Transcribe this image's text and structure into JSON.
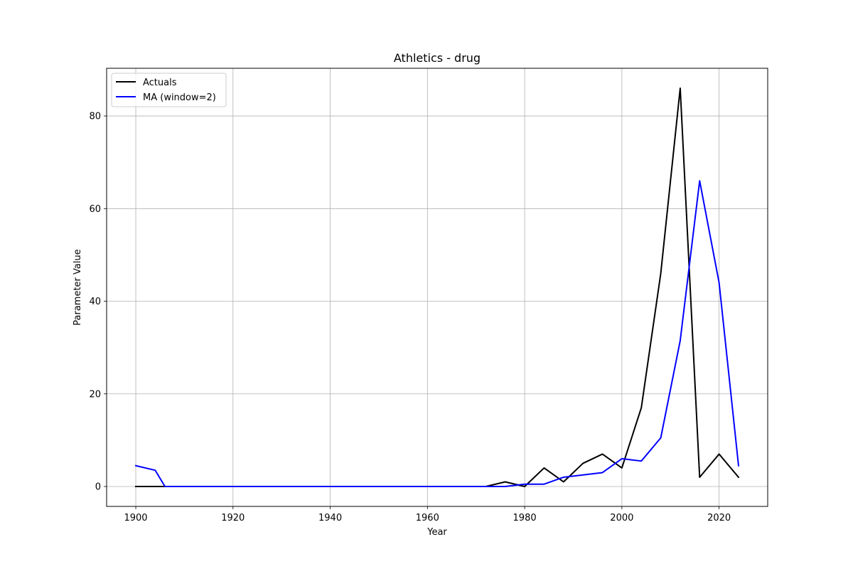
{
  "chart_data": {
    "type": "line",
    "title": "Athletics - drug",
    "xlabel": "Year",
    "ylabel": "Parameter Value",
    "xlim": [
      1894,
      2030
    ],
    "ylim": [
      -4.3,
      90.3
    ],
    "xticks": [
      1900,
      1920,
      1940,
      1960,
      1980,
      2000,
      2020
    ],
    "yticks": [
      0,
      20,
      40,
      60,
      80
    ],
    "grid": true,
    "legend_position": "top-left",
    "series": [
      {
        "name": "Actuals",
        "color": "#000000",
        "x": [
          1900,
          1904,
          1906,
          1908,
          1912,
          1920,
          1924,
          1928,
          1932,
          1936,
          1948,
          1952,
          1956,
          1960,
          1964,
          1968,
          1972,
          1976,
          1980,
          1984,
          1988,
          1992,
          1996,
          2000,
          2004,
          2008,
          2012,
          2016,
          2020,
          2024
        ],
        "y": [
          0,
          0,
          0,
          0,
          0,
          0,
          0,
          0,
          0,
          0,
          0,
          0,
          0,
          0,
          0,
          0,
          0,
          1,
          0,
          4,
          1,
          5,
          7,
          4,
          17,
          46,
          86,
          2,
          7,
          2
        ]
      },
      {
        "name": "MA (window=2)",
        "color": "#0000ff",
        "x": [
          1900,
          1904,
          1906,
          1908,
          1912,
          1920,
          1924,
          1928,
          1932,
          1936,
          1948,
          1952,
          1956,
          1960,
          1964,
          1968,
          1972,
          1976,
          1980,
          1984,
          1988,
          1992,
          1996,
          2000,
          2004,
          2008,
          2012,
          2016,
          2020,
          2024
        ],
        "y": [
          4.5,
          3.5,
          0,
          0,
          0,
          0,
          0,
          0,
          0,
          0,
          0,
          0,
          0,
          0,
          0,
          0,
          0,
          0,
          0.5,
          0.5,
          2,
          2.5,
          3,
          6,
          5.5,
          10.5,
          31.5,
          66,
          44,
          4.5
        ]
      }
    ]
  }
}
